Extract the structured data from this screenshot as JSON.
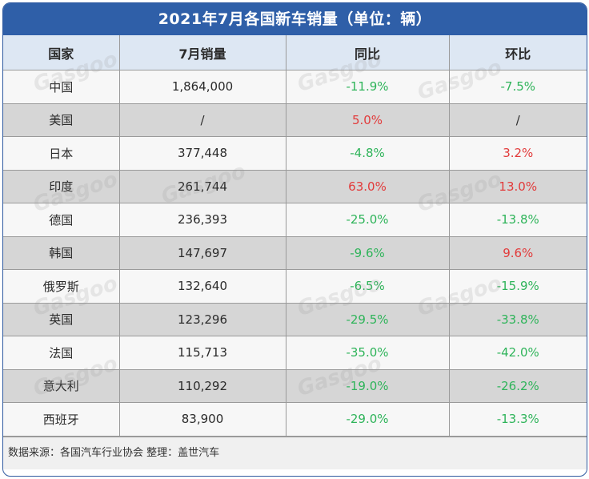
{
  "title": "2021年7月各国新车销量（单位：辆）",
  "footer": "数据来源：各国汽车行业协会 整理：盖世汽车",
  "watermark": "Gasgoo",
  "columns": [
    "国家",
    "7月销量",
    "同比",
    "环比"
  ],
  "colors": {
    "header_bg": "#2f5fa8",
    "negative": "#2fb45a",
    "positive": "#e23a3a"
  },
  "rows": [
    {
      "country": "中国",
      "sales": "1,864,000",
      "yoy": "-11.9%",
      "mom": "-7.5%"
    },
    {
      "country": "美国",
      "sales": "/",
      "yoy": "5.0%",
      "mom": "/"
    },
    {
      "country": "日本",
      "sales": "377,448",
      "yoy": "-4.8%",
      "mom": "3.2%"
    },
    {
      "country": "印度",
      "sales": "261,744",
      "yoy": "63.0%",
      "mom": "13.0%"
    },
    {
      "country": "德国",
      "sales": "236,393",
      "yoy": "-25.0%",
      "mom": "-13.8%"
    },
    {
      "country": "韩国",
      "sales": "147,697",
      "yoy": "-9.6%",
      "mom": "9.6%"
    },
    {
      "country": "俄罗斯",
      "sales": "132,640",
      "yoy": "-6.5%",
      "mom": "-15.9%"
    },
    {
      "country": "英国",
      "sales": "123,296",
      "yoy": "-29.5%",
      "mom": "-33.8%"
    },
    {
      "country": "法国",
      "sales": "115,713",
      "yoy": "-35.0%",
      "mom": "-42.0%"
    },
    {
      "country": "意大利",
      "sales": "110,292",
      "yoy": "-19.0%",
      "mom": "-26.2%"
    },
    {
      "country": "西班牙",
      "sales": "83,900",
      "yoy": "-29.0%",
      "mom": "-13.3%"
    }
  ],
  "chart_data": {
    "type": "table",
    "title": "2021年7月各国新车销量（单位：辆）",
    "columns": [
      "国家",
      "7月销量",
      "同比",
      "环比"
    ],
    "categories": [
      "中国",
      "美国",
      "日本",
      "印度",
      "德国",
      "韩国",
      "俄罗斯",
      "英国",
      "法国",
      "意大利",
      "西班牙"
    ],
    "series": [
      {
        "name": "7月销量",
        "values": [
          1864000,
          null,
          377448,
          261744,
          236393,
          147697,
          132640,
          123296,
          115713,
          110292,
          83900
        ]
      },
      {
        "name": "同比",
        "values": [
          -11.9,
          5.0,
          -4.8,
          63.0,
          -25.0,
          -9.6,
          -6.5,
          -29.5,
          -35.0,
          -19.0,
          -29.0
        ]
      },
      {
        "name": "环比",
        "values": [
          -7.5,
          null,
          3.2,
          13.0,
          -13.8,
          9.6,
          -15.9,
          -33.8,
          -42.0,
          -26.2,
          -13.3
        ]
      }
    ]
  }
}
